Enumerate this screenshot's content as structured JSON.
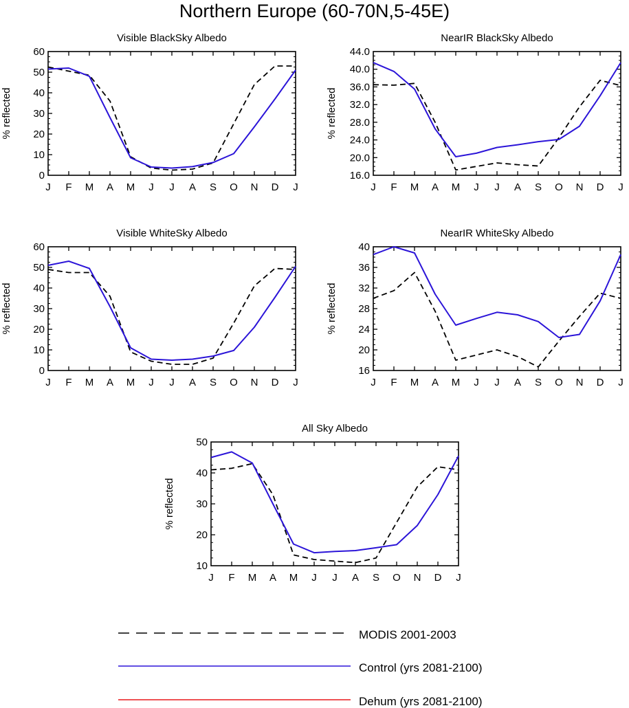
{
  "title": "Northern Europe (60-70N,5-45E)",
  "month_labels": [
    "J",
    "F",
    "M",
    "A",
    "M",
    "J",
    "J",
    "A",
    "S",
    "O",
    "N",
    "D",
    "J"
  ],
  "colors": {
    "modis": "#000000",
    "control": "#2b14d8",
    "dehum": "#e8181c"
  },
  "legend": [
    {
      "key": "modis",
      "label": "MODIS 2001-2003"
    },
    {
      "key": "control",
      "label": "Control (yrs 2081-2100)"
    },
    {
      "key": "dehum",
      "label": "Dehum (yrs 2081-2100)"
    }
  ],
  "chart_data": [
    {
      "type": "line",
      "title": "Visible BlackSky Albedo",
      "ylabel": "% reflected",
      "ylim": [
        0,
        60
      ],
      "yticks": [
        0,
        10,
        20,
        30,
        40,
        50,
        60
      ],
      "ytick_labels": [
        "0",
        "10",
        "20",
        "30",
        "40",
        "50",
        "60"
      ],
      "series": [
        {
          "name": "MODIS 2001-2003",
          "key": "modis",
          "values": [
            52.5,
            50.5,
            48.5,
            36,
            9,
            3.5,
            2.5,
            3,
            6,
            25,
            44,
            53,
            53
          ]
        },
        {
          "name": "Control (yrs 2081-2100)",
          "key": "control",
          "values": [
            51.5,
            52,
            48,
            28,
            8.5,
            4,
            3.5,
            4.2,
            6.2,
            10.5,
            23.5,
            37,
            51
          ]
        }
      ]
    },
    {
      "type": "line",
      "title": "NearIR BlackSky Albedo",
      "ylabel": "% reflected",
      "ylim": [
        16,
        44
      ],
      "yticks": [
        16,
        20,
        24,
        28,
        32,
        36,
        40,
        44
      ],
      "ytick_labels": [
        "16.0",
        "20.0",
        "24.0",
        "28.0",
        "32.0",
        "36.0",
        "40.0",
        "44.0"
      ],
      "series": [
        {
          "name": "MODIS 2001-2003",
          "key": "modis",
          "values": [
            36.5,
            36.4,
            36.8,
            28,
            17.2,
            18,
            18.8,
            18.4,
            18.1,
            24.5,
            31.5,
            37.5,
            36.3
          ]
        },
        {
          "name": "Control (yrs 2081-2100)",
          "key": "control",
          "values": [
            41.5,
            39.5,
            35.5,
            26.5,
            20.2,
            21,
            22.3,
            22.9,
            23.6,
            24.1,
            27.1,
            34,
            41.5
          ]
        }
      ]
    },
    {
      "type": "line",
      "title": "Visible WhiteSky Albedo",
      "ylabel": "% reflected",
      "ylim": [
        0,
        60
      ],
      "yticks": [
        0,
        10,
        20,
        30,
        40,
        50,
        60
      ],
      "ytick_labels": [
        "0",
        "10",
        "20",
        "30",
        "40",
        "50",
        "60"
      ],
      "series": [
        {
          "name": "MODIS 2001-2003",
          "key": "modis",
          "values": [
            49,
            47.5,
            47.5,
            36,
            9,
            4.5,
            3,
            3,
            6,
            23,
            41,
            49.5,
            49
          ]
        },
        {
          "name": "Control (yrs 2081-2100)",
          "key": "control",
          "values": [
            51,
            53,
            49.5,
            31,
            11,
            5.5,
            5,
            5.5,
            7,
            9.7,
            21,
            35.5,
            50.5
          ]
        }
      ]
    },
    {
      "type": "line",
      "title": "NearIR WhiteSky Albedo",
      "ylabel": "% reflected",
      "ylim": [
        16,
        40
      ],
      "yticks": [
        16,
        20,
        24,
        28,
        32,
        36,
        40
      ],
      "ytick_labels": [
        "16",
        "20",
        "24",
        "28",
        "32",
        "36",
        "40"
      ],
      "series": [
        {
          "name": "MODIS 2001-2003",
          "key": "modis",
          "values": [
            30,
            31.5,
            35,
            27.5,
            18,
            19,
            20,
            18.7,
            16.7,
            21.7,
            26.5,
            31,
            30
          ]
        },
        {
          "name": "Control (yrs 2081-2100)",
          "key": "control",
          "values": [
            38.5,
            40,
            38.8,
            30.8,
            24.8,
            26.1,
            27.3,
            26.8,
            25.5,
            22.4,
            23,
            29.5,
            38.5
          ]
        }
      ]
    },
    {
      "type": "line",
      "title": "All Sky Albedo",
      "ylabel": "% reflected",
      "ylim": [
        10,
        50
      ],
      "yticks": [
        10,
        20,
        30,
        40,
        50
      ],
      "ytick_labels": [
        "10",
        "20",
        "30",
        "40",
        "50"
      ],
      "series": [
        {
          "name": "MODIS 2001-2003",
          "key": "modis",
          "values": [
            41,
            41.5,
            43,
            33,
            13.5,
            12,
            11.5,
            11,
            12.5,
            24,
            35.5,
            42,
            41
          ]
        },
        {
          "name": "Control (yrs 2081-2100)",
          "key": "control",
          "values": [
            45,
            46.8,
            43.2,
            30,
            17,
            14.2,
            14.6,
            14.9,
            15.8,
            16.8,
            23,
            33,
            45.5
          ]
        }
      ]
    }
  ]
}
